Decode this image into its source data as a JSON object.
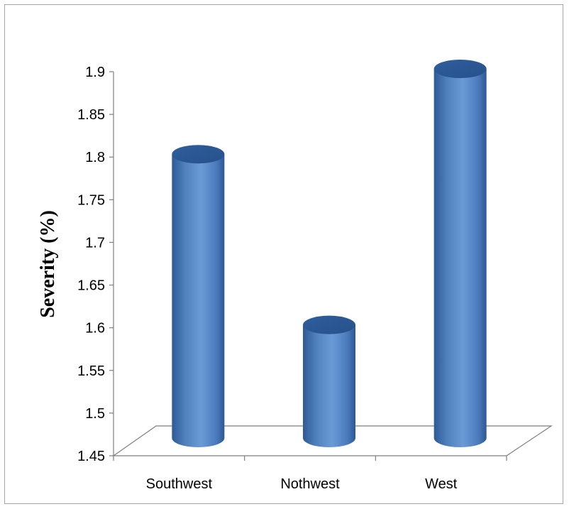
{
  "chart_data": {
    "type": "bar",
    "categories": [
      "Southwest",
      "Nothwest",
      "West"
    ],
    "values": [
      1.8,
      1.6,
      1.9
    ],
    "title": "",
    "xlabel": "",
    "ylabel": "Severity (%)",
    "ylim": [
      1.45,
      1.9
    ],
    "yticks": [
      "1.45",
      "1.5",
      "1.55",
      "1.6",
      "1.65",
      "1.7",
      "1.75",
      "1.8",
      "1.85",
      "1.9"
    ],
    "grid": false,
    "legend": "none",
    "style": "3d-cylinder",
    "bar_color": "#4f81bd"
  }
}
